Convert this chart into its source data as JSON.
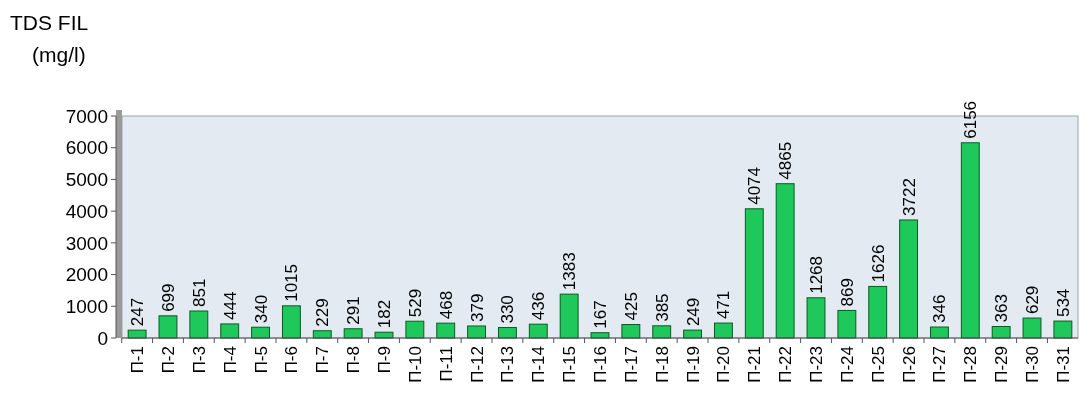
{
  "chart_data": {
    "type": "bar",
    "ylabel": "TDS FIL (mg/l)",
    "categories": [
      "П-1",
      "П-2",
      "П-3",
      "П-4",
      "П-5",
      "П-6",
      "П-7",
      "П-8",
      "П-9",
      "П-10",
      "П-11",
      "П-12",
      "П-13",
      "П-14",
      "П-15",
      "П-16",
      "П-17",
      "П-18",
      "П-19",
      "П-20",
      "П-21",
      "П-22",
      "П-23",
      "П-24",
      "П-25",
      "П-26",
      "П-27",
      "П-28",
      "П-29",
      "П-30",
      "П-31"
    ],
    "values": [
      247,
      699,
      851,
      444,
      340,
      1015,
      229,
      291,
      182,
      529,
      468,
      379,
      330,
      436,
      1383,
      167,
      425,
      385,
      249,
      471,
      4074,
      4865,
      1268,
      869,
      1626,
      3722,
      346,
      6156,
      363,
      629,
      534
    ],
    "color": "#1ec85a",
    "ylim": [
      0,
      7000
    ],
    "yticks": [
      0,
      1000,
      2000,
      3000,
      4000,
      5000,
      6000,
      7000
    ],
    "data_labels": true
  }
}
